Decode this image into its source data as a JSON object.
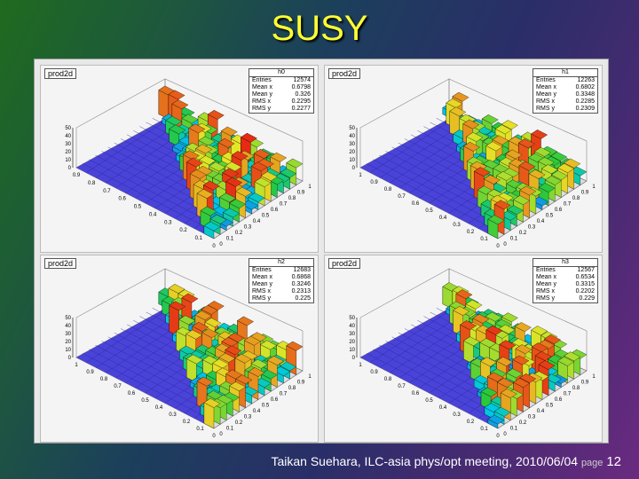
{
  "title": "SUSY",
  "footer": {
    "text": "Taikan Suehara, ILC-asia phys/opt meeting, 2010/06/04",
    "page_label": "page",
    "page_number": "12"
  },
  "chart_data": [
    {
      "type": "lego3d",
      "canvas_title": "prod2d",
      "stat_name": "h0",
      "stats": [
        [
          "Entries",
          "12574"
        ],
        [
          "Mean x",
          "0.6798"
        ],
        [
          "Mean y",
          "0.326"
        ],
        [
          "RMS x",
          "0.2295"
        ],
        [
          "RMS y",
          "0.2277"
        ]
      ],
      "x_ticks": [
        "0.9",
        "0.8",
        "0.7",
        "0.6",
        "0.5",
        "0.4",
        "0.3",
        "0.2",
        "0.1",
        "0"
      ],
      "y_ticks": [
        "1",
        "0.9",
        "0.8",
        "0.7",
        "0.6",
        "0.5",
        "0.4",
        "0.3",
        "0.2",
        "0.1",
        "0"
      ],
      "z_ticks": [
        "50",
        "40",
        "30",
        "20",
        "10",
        "0"
      ],
      "z_range": [
        0,
        50
      ]
    },
    {
      "type": "lego3d",
      "canvas_title": "prod2d",
      "stat_name": "h1",
      "stats": [
        [
          "Entries",
          "12263"
        ],
        [
          "Mean x",
          "0.6802"
        ],
        [
          "Mean y",
          "0.3348"
        ],
        [
          "RMS x",
          "0.2285"
        ],
        [
          "RMS y",
          "0.2309"
        ]
      ],
      "x_ticks": [
        "1",
        "0.9",
        "0.8",
        "0.7",
        "0.6",
        "0.5",
        "0.4",
        "0.3",
        "0.2",
        "0.1",
        "0"
      ],
      "y_ticks": [
        "1",
        "0.9",
        "0.8",
        "0.7",
        "0.6",
        "0.5",
        "0.4",
        "0.3",
        "0.2",
        "0.1",
        "0"
      ],
      "z_ticks": [
        "50",
        "40",
        "30",
        "20",
        "10",
        "0"
      ],
      "z_range": [
        0,
        50
      ]
    },
    {
      "type": "lego3d",
      "canvas_title": "prod2d",
      "stat_name": "h2",
      "stats": [
        [
          "Entries",
          "12683"
        ],
        [
          "Mean x",
          "0.6868"
        ],
        [
          "Mean y",
          "0.3246"
        ],
        [
          "RMS x",
          "0.2313"
        ],
        [
          "RMS y",
          "0.225"
        ]
      ],
      "x_ticks": [
        "1",
        "0.9",
        "0.8",
        "0.7",
        "0.6",
        "0.5",
        "0.4",
        "0.3",
        "0.2",
        "0.1",
        "0"
      ],
      "y_ticks": [
        "1",
        "0.9",
        "0.8",
        "0.7",
        "0.6",
        "0.5",
        "0.4",
        "0.3",
        "0.2",
        "0.1",
        "0"
      ],
      "z_ticks": [
        "50",
        "40",
        "30",
        "20",
        "10",
        "0"
      ],
      "z_range": [
        0,
        50
      ]
    },
    {
      "type": "lego3d",
      "canvas_title": "prod2d",
      "stat_name": "h3",
      "stats": [
        [
          "Entries",
          "12567"
        ],
        [
          "Mean x",
          "0.6534"
        ],
        [
          "Mean y",
          "0.3315"
        ],
        [
          "RMS x",
          "0.2202"
        ],
        [
          "RMS y",
          "0.229"
        ]
      ],
      "x_ticks": [
        "1",
        "0.9",
        "0.8",
        "0.7",
        "0.6",
        "0.5",
        "0.4",
        "0.3",
        "0.2",
        "0.1",
        "0"
      ],
      "y_ticks": [
        "1",
        "0.9",
        "0.8",
        "0.7",
        "0.6",
        "0.5",
        "0.4",
        "0.3",
        "0.2",
        "0.1",
        "0"
      ],
      "z_ticks": [
        "50",
        "40",
        "30",
        "20",
        "10",
        "0"
      ],
      "z_range": [
        0,
        50
      ]
    }
  ]
}
